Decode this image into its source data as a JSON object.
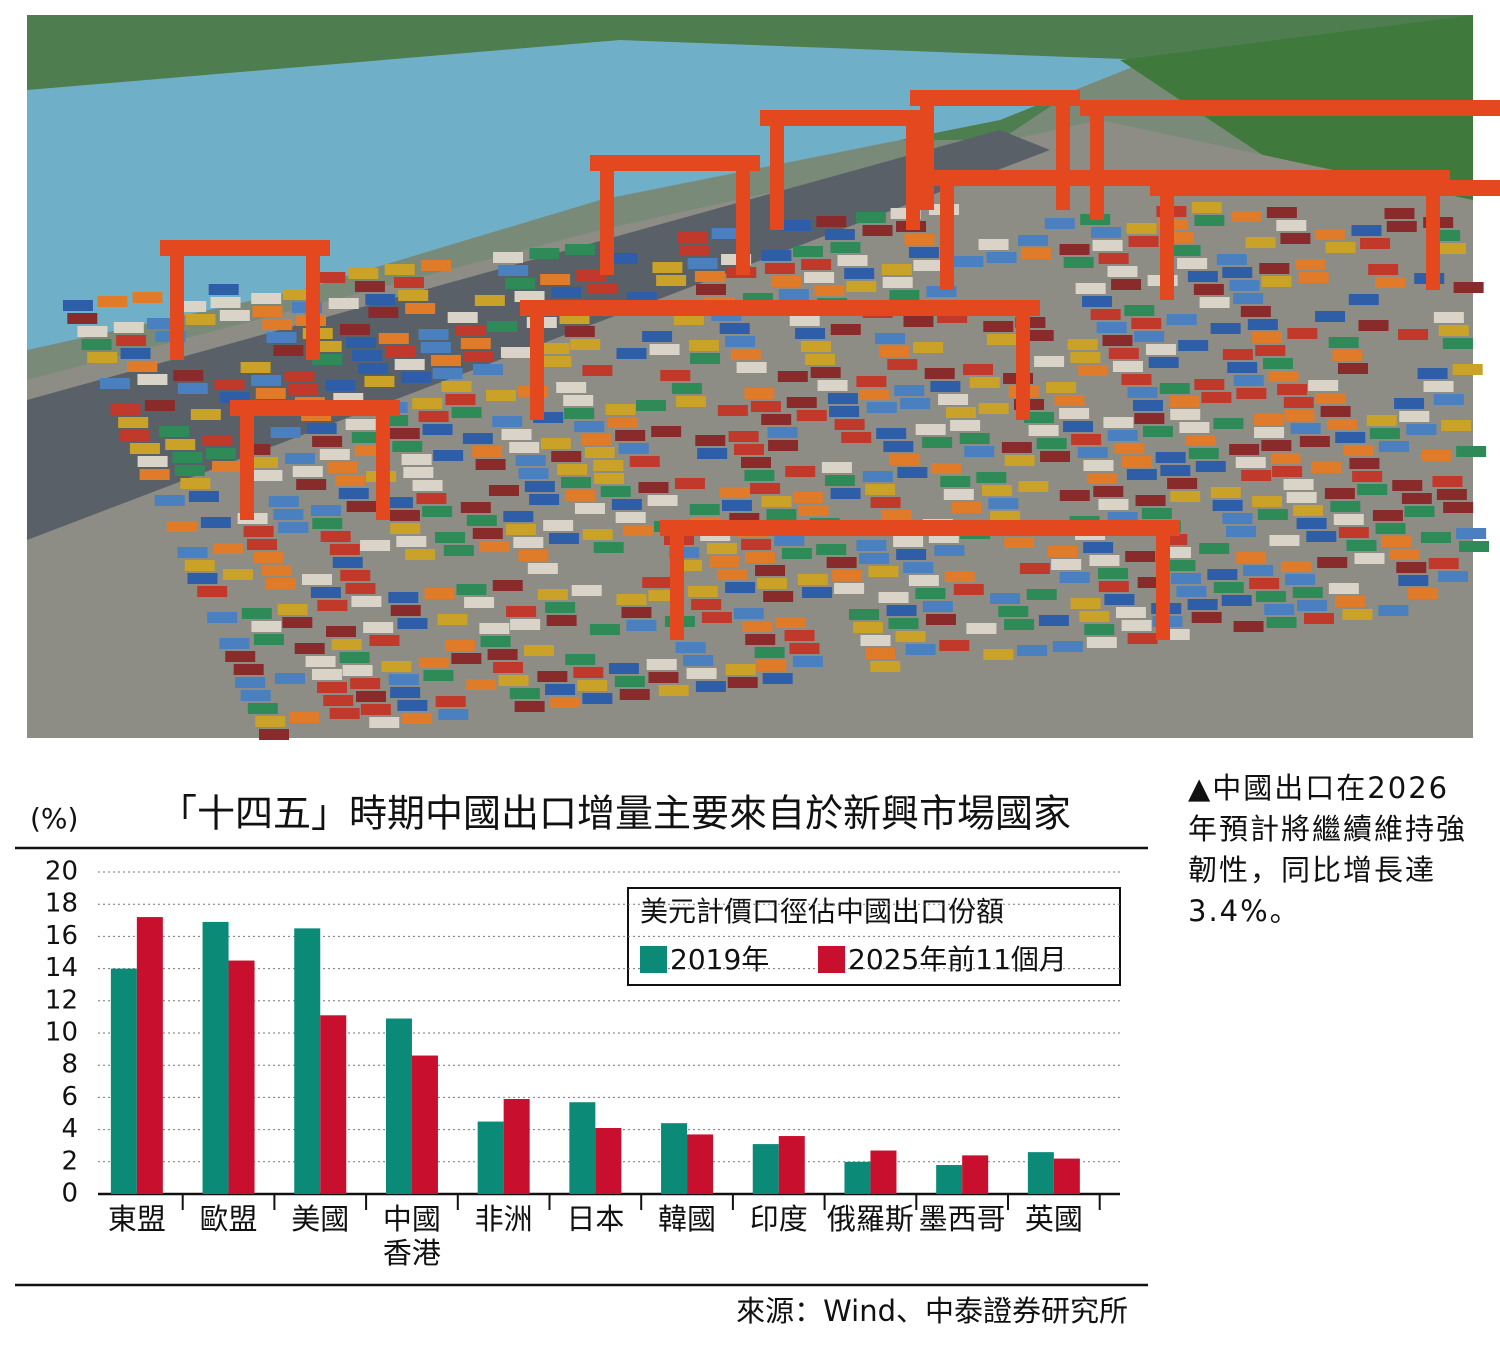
{
  "photo_caption": "▲中國出口在2026年預計將繼續維持強韌性，同比增長達3.4%。",
  "chart_data": {
    "type": "bar",
    "title": "「十四五」時期中國出口增量主要來自於新興市場國家",
    "y_label": "(%)",
    "legend_title": "美元計價口徑佔中國出口份額",
    "source": "來源：Wind、中泰證券研究所",
    "categories": [
      "東盟",
      "歐盟",
      "美國",
      "中國\n香港",
      "非洲",
      "日本",
      "韓國",
      "印度",
      "俄羅斯",
      "墨西哥",
      "英國"
    ],
    "series": [
      {
        "name": "2019年",
        "color": "#0b8a78",
        "values": [
          14.0,
          16.9,
          16.5,
          10.9,
          4.5,
          5.7,
          4.4,
          3.1,
          2.0,
          1.8,
          2.6
        ]
      },
      {
        "name": "2025年前11個月",
        "color": "#c8102e",
        "values": [
          17.2,
          14.5,
          11.1,
          8.6,
          5.9,
          4.1,
          3.7,
          3.6,
          2.7,
          2.4,
          2.2
        ]
      }
    ],
    "ylim": [
      0,
      20
    ],
    "yticks": [
      0,
      2,
      4,
      6,
      8,
      10,
      12,
      14,
      16,
      18,
      20
    ],
    "grid": true
  }
}
